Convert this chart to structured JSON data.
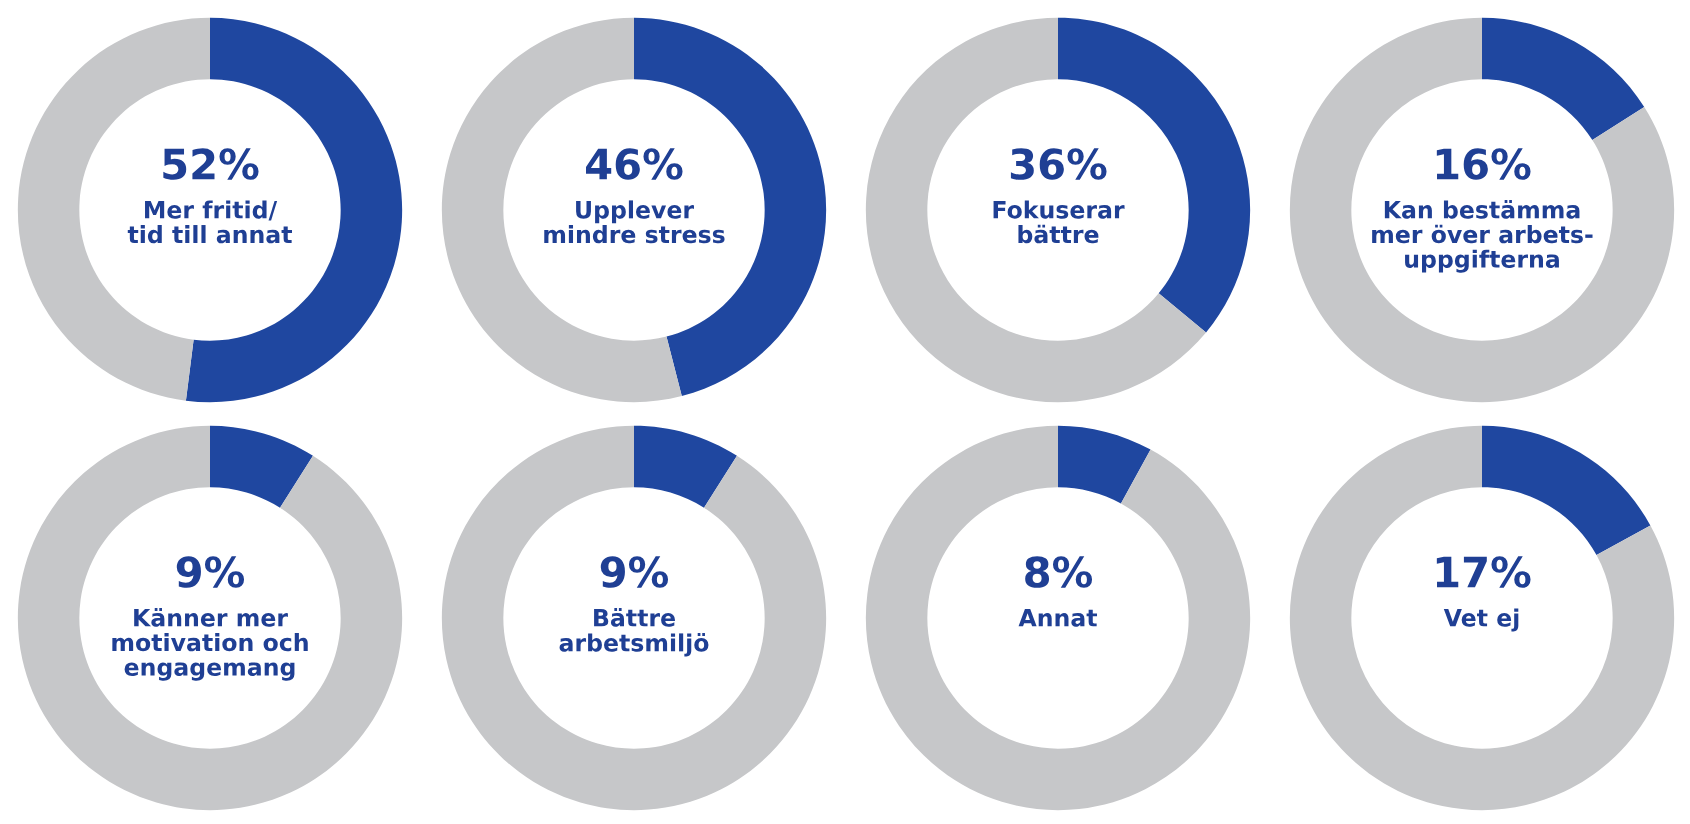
{
  "chart_data": [
    {
      "type": "donut",
      "title": "Mer fritid/\ntid till annat",
      "categories": [
        null,
        null
      ],
      "values": [
        52,
        48
      ],
      "colors": [
        "#1f47a0",
        "#c6c7c9"
      ],
      "value_labels": [
        "52%",
        null
      ]
    },
    {
      "type": "donut",
      "title": "Upplever\nmindre stress",
      "categories": [
        null,
        null
      ],
      "values": [
        46,
        54
      ],
      "colors": [
        "#1f47a0",
        "#c6c7c9"
      ],
      "value_labels": [
        "46%",
        null
      ]
    },
    {
      "type": "donut",
      "title": "Fokuserar\nbättre",
      "categories": [
        null,
        null
      ],
      "values": [
        36,
        64
      ],
      "colors": [
        "#1f47a0",
        "#c6c7c9"
      ],
      "value_labels": [
        "36%",
        null
      ]
    },
    {
      "type": "donut",
      "title": "Kan bestämma\nmer över arbets-\nuppgifterna",
      "categories": [
        null,
        null
      ],
      "values": [
        16,
        84
      ],
      "colors": [
        "#1f47a0",
        "#c6c7c9"
      ],
      "value_labels": [
        "16%",
        null
      ]
    },
    {
      "type": "donut",
      "title": "Känner mer\nmotivation och\nengagemang",
      "categories": [
        null,
        null
      ],
      "values": [
        9,
        91
      ],
      "colors": [
        "#1f47a0",
        "#c6c7c9"
      ],
      "value_labels": [
        "9%",
        null
      ]
    },
    {
      "type": "donut",
      "title": "Bättre\narbetsmiljö",
      "categories": [
        null,
        null
      ],
      "values": [
        9,
        91
      ],
      "colors": [
        "#1f47a0",
        "#c6c7c9"
      ],
      "value_labels": [
        "9%",
        null
      ]
    },
    {
      "type": "donut",
      "title": "Annat",
      "categories": [
        null,
        null
      ],
      "values": [
        8,
        92
      ],
      "colors": [
        "#1f47a0",
        "#c6c7c9"
      ],
      "value_labels": [
        "8%",
        null
      ]
    },
    {
      "type": "donut",
      "title": "Vet ej",
      "categories": [
        null,
        null
      ],
      "values": [
        17,
        83
      ],
      "colors": [
        "#1f47a0",
        "#c6c7c9"
      ],
      "value_labels": [
        "17%",
        null
      ]
    }
  ]
}
